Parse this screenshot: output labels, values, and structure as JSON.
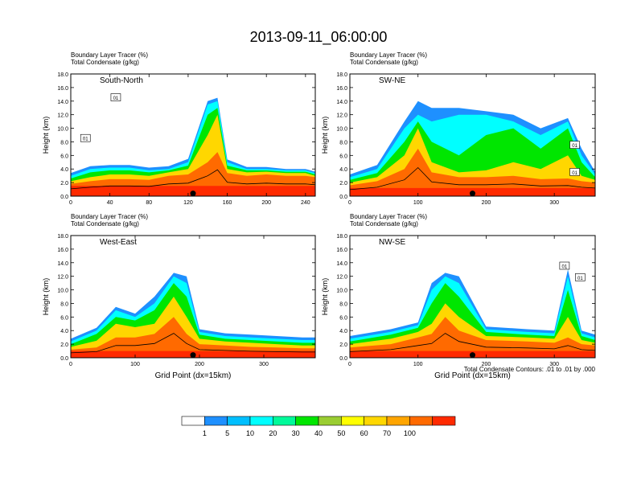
{
  "chart_data": {
    "type": "heatmap",
    "title": "2013-09-11_06:00:00",
    "colorbar": {
      "ticks": [
        "1",
        "5",
        "10",
        "20",
        "30",
        "40",
        "50",
        "60",
        "70",
        "100"
      ],
      "colors": [
        "#ffffff",
        "#1e90ff",
        "#00bfff",
        "#00ffff",
        "#00fa9a",
        "#00e600",
        "#9acd32",
        "#ffff00",
        "#ffd700",
        "#ffa500",
        "#ff6a00",
        "#ff2a00"
      ]
    },
    "contour_note": "Total Condensate Contours: .01 to .01 by .000",
    "panels": [
      {
        "label_top": "Boundary Layer Tracer   (%)",
        "label_bottom": "Total Condensate   (g/kg)",
        "name": "South-North",
        "ylabel": "Height (km)",
        "xlabel": "",
        "xlim": [
          0,
          250
        ],
        "ylim": [
          0,
          18
        ],
        "xticks": [
          0,
          40,
          80,
          120,
          160,
          200,
          240
        ],
        "yticks": [
          "0.0",
          "2.0",
          "4.0",
          "6.0",
          "8.0",
          "10.0",
          "12.0",
          "14.0",
          "16.0",
          "18.0"
        ],
        "marker_x": 125,
        "contour_labels": [
          {
            "text": "01",
            "x": 46,
            "y": 14.5
          },
          {
            "text": "01",
            "x": 15,
            "y": 8.5
          }
        ],
        "fields": [
          {
            "x": [
              0,
              250
            ],
            "top": [
              1.5,
              1.5
            ],
            "level": 11
          },
          {
            "x": [
              0,
              20,
              40,
              60,
              80,
              100,
              120,
              140,
              150,
              160,
              180,
              200,
              220,
              240,
              250
            ],
            "top": [
              1.8,
              2.2,
              2.5,
              2.5,
              2.4,
              3.0,
              3.2,
              5.0,
              6.5,
              3.4,
              3.0,
              3.2,
              3.0,
              3.0,
              2.8
            ],
            "level": 10
          },
          {
            "x": [
              0,
              20,
              40,
              60,
              80,
              100,
              120,
              140,
              150,
              160,
              180,
              200,
              220,
              240,
              250
            ],
            "top": [
              2.2,
              2.8,
              3.2,
              3.2,
              3.0,
              3.5,
              4.0,
              9.0,
              12.0,
              4.0,
              3.5,
              3.6,
              3.4,
              3.4,
              3.0
            ],
            "level": 8
          },
          {
            "x": [
              0,
              20,
              40,
              60,
              80,
              100,
              120,
              140,
              150,
              160,
              180,
              200,
              220,
              240,
              250
            ],
            "top": [
              2.6,
              3.5,
              3.8,
              3.8,
              3.5,
              3.8,
              4.5,
              12.0,
              13.0,
              4.5,
              3.8,
              3.8,
              3.6,
              3.6,
              3.2
            ],
            "level": 5
          },
          {
            "x": [
              0,
              20,
              40,
              60,
              80,
              100,
              120,
              140,
              150,
              160,
              180,
              200,
              220,
              240,
              250
            ],
            "top": [
              3.0,
              4.0,
              4.2,
              4.2,
              3.8,
              4.0,
              5.0,
              13.5,
              14.0,
              5.0,
              4.0,
              4.0,
              3.8,
              3.8,
              3.4
            ],
            "level": 3
          },
          {
            "x": [
              0,
              20,
              40,
              60,
              80,
              100,
              120,
              140,
              150,
              160,
              180,
              200,
              220,
              240,
              250
            ],
            "top": [
              3.4,
              4.4,
              4.6,
              4.6,
              4.2,
              4.4,
              5.5,
              14.0,
              14.5,
              5.4,
              4.3,
              4.3,
              4.0,
              4.0,
              3.6
            ],
            "level": 1
          }
        ]
      },
      {
        "label_top": "Boundary Layer Tracer   (%)",
        "label_bottom": "Total Condensate   (g/kg)",
        "name": "SW-NE",
        "ylabel": "Height (km)",
        "xlabel": "",
        "xlim": [
          0,
          360
        ],
        "ylim": [
          0,
          18
        ],
        "xticks": [
          0,
          100,
          200,
          300
        ],
        "yticks": [
          "0.0",
          "2.0",
          "4.0",
          "6.0",
          "8.0",
          "10.0",
          "12.0",
          "14.0",
          "16.0",
          "18.0"
        ],
        "marker_x": 180,
        "contour_labels": [
          {
            "text": "01",
            "x": 330,
            "y": 7.5
          },
          {
            "text": "01",
            "x": 330,
            "y": 3.5
          }
        ],
        "fields": [
          {
            "x": [
              0,
              360
            ],
            "top": [
              1.2,
              1.2
            ],
            "level": 11
          },
          {
            "x": [
              0,
              40,
              80,
              100,
              120,
              160,
              200,
              240,
              280,
              320,
              340,
              360
            ],
            "top": [
              1.6,
              2.2,
              4.0,
              7.0,
              3.5,
              2.8,
              2.8,
              3.0,
              2.5,
              2.6,
              2.2,
              2.0
            ],
            "level": 10
          },
          {
            "x": [
              0,
              40,
              80,
              100,
              120,
              160,
              200,
              240,
              280,
              320,
              340,
              360
            ],
            "top": [
              2.0,
              2.8,
              6.0,
              10.0,
              5.0,
              3.5,
              3.8,
              5.0,
              4.0,
              6.0,
              3.0,
              2.4
            ],
            "level": 8
          },
          {
            "x": [
              0,
              40,
              80,
              100,
              120,
              160,
              200,
              240,
              280,
              320,
              340,
              360
            ],
            "top": [
              2.4,
              3.4,
              8.0,
              11.0,
              8.0,
              6.0,
              9.0,
              10.0,
              7.0,
              10.0,
              5.0,
              2.8
            ],
            "level": 5
          },
          {
            "x": [
              0,
              40,
              80,
              100,
              120,
              160,
              200,
              240,
              280,
              320,
              340,
              360
            ],
            "top": [
              2.8,
              4.0,
              10.0,
              12.0,
              11.0,
              12.0,
              12.0,
              11.0,
              9.0,
              11.0,
              6.0,
              3.2
            ],
            "level": 3
          },
          {
            "x": [
              0,
              40,
              80,
              100,
              120,
              160,
              200,
              240,
              280,
              320,
              340,
              360
            ],
            "top": [
              3.2,
              4.6,
              11.0,
              14.0,
              13.0,
              13.0,
              12.5,
              12.0,
              10.0,
              11.5,
              7.0,
              3.6
            ],
            "level": 1
          }
        ]
      },
      {
        "label_top": "Boundary Layer Tracer   (%)",
        "label_bottom": "Total Condensate   (g/kg)",
        "name": "West-East",
        "ylabel": "Height (km)",
        "xlabel": "Grid Point (dx=15km)",
        "xlim": [
          0,
          380
        ],
        "ylim": [
          0,
          18
        ],
        "xticks": [
          0,
          100,
          200,
          300
        ],
        "yticks": [
          "0.0",
          "2.0",
          "4.0",
          "6.0",
          "8.0",
          "10.0",
          "12.0",
          "14.0",
          "16.0",
          "18.0"
        ],
        "marker_x": 190,
        "contour_labels": [],
        "fields": [
          {
            "x": [
              0,
              380
            ],
            "top": [
              1.0,
              1.0
            ],
            "level": 11
          },
          {
            "x": [
              0,
              40,
              70,
              100,
              130,
              160,
              180,
              200,
              240,
              280,
              320,
              360,
              380
            ],
            "top": [
              1.2,
              1.5,
              3.0,
              3.0,
              3.5,
              6.0,
              3.5,
              2.0,
              1.8,
              1.6,
              1.5,
              1.4,
              1.4
            ],
            "level": 10
          },
          {
            "x": [
              0,
              40,
              70,
              100,
              130,
              160,
              180,
              200,
              240,
              280,
              320,
              360,
              380
            ],
            "top": [
              1.6,
              2.5,
              5.0,
              4.5,
              5.0,
              9.0,
              6.0,
              2.8,
              2.4,
              2.2,
              2.0,
              1.8,
              1.8
            ],
            "level": 8
          },
          {
            "x": [
              0,
              40,
              70,
              100,
              130,
              160,
              180,
              200,
              240,
              280,
              320,
              360,
              380
            ],
            "top": [
              2.0,
              3.5,
              6.0,
              5.5,
              7.0,
              11.0,
              9.0,
              3.4,
              2.8,
              2.6,
              2.4,
              2.2,
              2.2
            ],
            "level": 5
          },
          {
            "x": [
              0,
              40,
              70,
              100,
              130,
              160,
              180,
              200,
              240,
              280,
              320,
              360,
              380
            ],
            "top": [
              2.4,
              4.0,
              7.0,
              6.0,
              8.0,
              12.0,
              11.0,
              3.8,
              3.2,
              3.0,
              2.8,
              2.6,
              2.6
            ],
            "level": 3
          },
          {
            "x": [
              0,
              40,
              70,
              100,
              130,
              160,
              180,
              200,
              240,
              280,
              320,
              360,
              380
            ],
            "top": [
              2.8,
              4.4,
              7.5,
              6.5,
              9.0,
              12.5,
              12.0,
              4.2,
              3.6,
              3.4,
              3.2,
              3.0,
              3.0
            ],
            "level": 1
          }
        ]
      },
      {
        "label_top": "Boundary Layer Tracer   (%)",
        "label_bottom": "Total Condensate   (g/kg)",
        "name": "NW-SE",
        "ylabel": "Height (km)",
        "xlabel": "Grid Point (dx=15km)",
        "xlim": [
          0,
          360
        ],
        "ylim": [
          0,
          18
        ],
        "xticks": [
          0,
          100,
          200,
          300
        ],
        "yticks": [
          "0.0",
          "2.0",
          "4.0",
          "6.0",
          "8.0",
          "10.0",
          "12.0",
          "14.0",
          "16.0",
          "18.0"
        ],
        "marker_x": 180,
        "contour_labels": [
          {
            "text": "01",
            "x": 315,
            "y": 13.5
          },
          {
            "text": "01",
            "x": 338,
            "y": 11.8
          }
        ],
        "fields": [
          {
            "x": [
              0,
              360
            ],
            "top": [
              1.0,
              1.0
            ],
            "level": 11
          },
          {
            "x": [
              0,
              60,
              100,
              120,
              140,
              160,
              200,
              260,
              300,
              320,
              340,
              360
            ],
            "top": [
              1.5,
              2.0,
              3.0,
              3.5,
              6.0,
              4.0,
              2.6,
              2.4,
              2.2,
              3.0,
              2.0,
              1.8
            ],
            "level": 10
          },
          {
            "x": [
              0,
              60,
              100,
              120,
              140,
              160,
              200,
              260,
              300,
              320,
              340,
              360
            ],
            "top": [
              2.0,
              2.8,
              3.8,
              5.0,
              8.0,
              6.0,
              3.2,
              3.0,
              2.8,
              6.0,
              2.6,
              2.2
            ],
            "level": 8
          },
          {
            "x": [
              0,
              60,
              100,
              120,
              140,
              160,
              200,
              260,
              300,
              320,
              340,
              360
            ],
            "top": [
              2.4,
              3.4,
              4.4,
              8.0,
              11.0,
              9.0,
              3.8,
              3.4,
              3.2,
              10.0,
              3.2,
              2.6
            ],
            "level": 5
          },
          {
            "x": [
              0,
              60,
              100,
              120,
              140,
              160,
              200,
              260,
              300,
              320,
              340,
              360
            ],
            "top": [
              2.8,
              3.8,
              4.8,
              10.0,
              12.0,
              11.0,
              4.2,
              3.8,
              3.6,
              12.0,
              3.6,
              3.0
            ],
            "level": 3
          },
          {
            "x": [
              0,
              60,
              100,
              120,
              140,
              160,
              200,
              260,
              300,
              320,
              340,
              360
            ],
            "top": [
              3.2,
              4.2,
              5.2,
              11.0,
              12.5,
              12.0,
              4.6,
              4.2,
              4.0,
              13.0,
              4.0,
              3.4
            ],
            "level": 1
          }
        ]
      }
    ]
  }
}
